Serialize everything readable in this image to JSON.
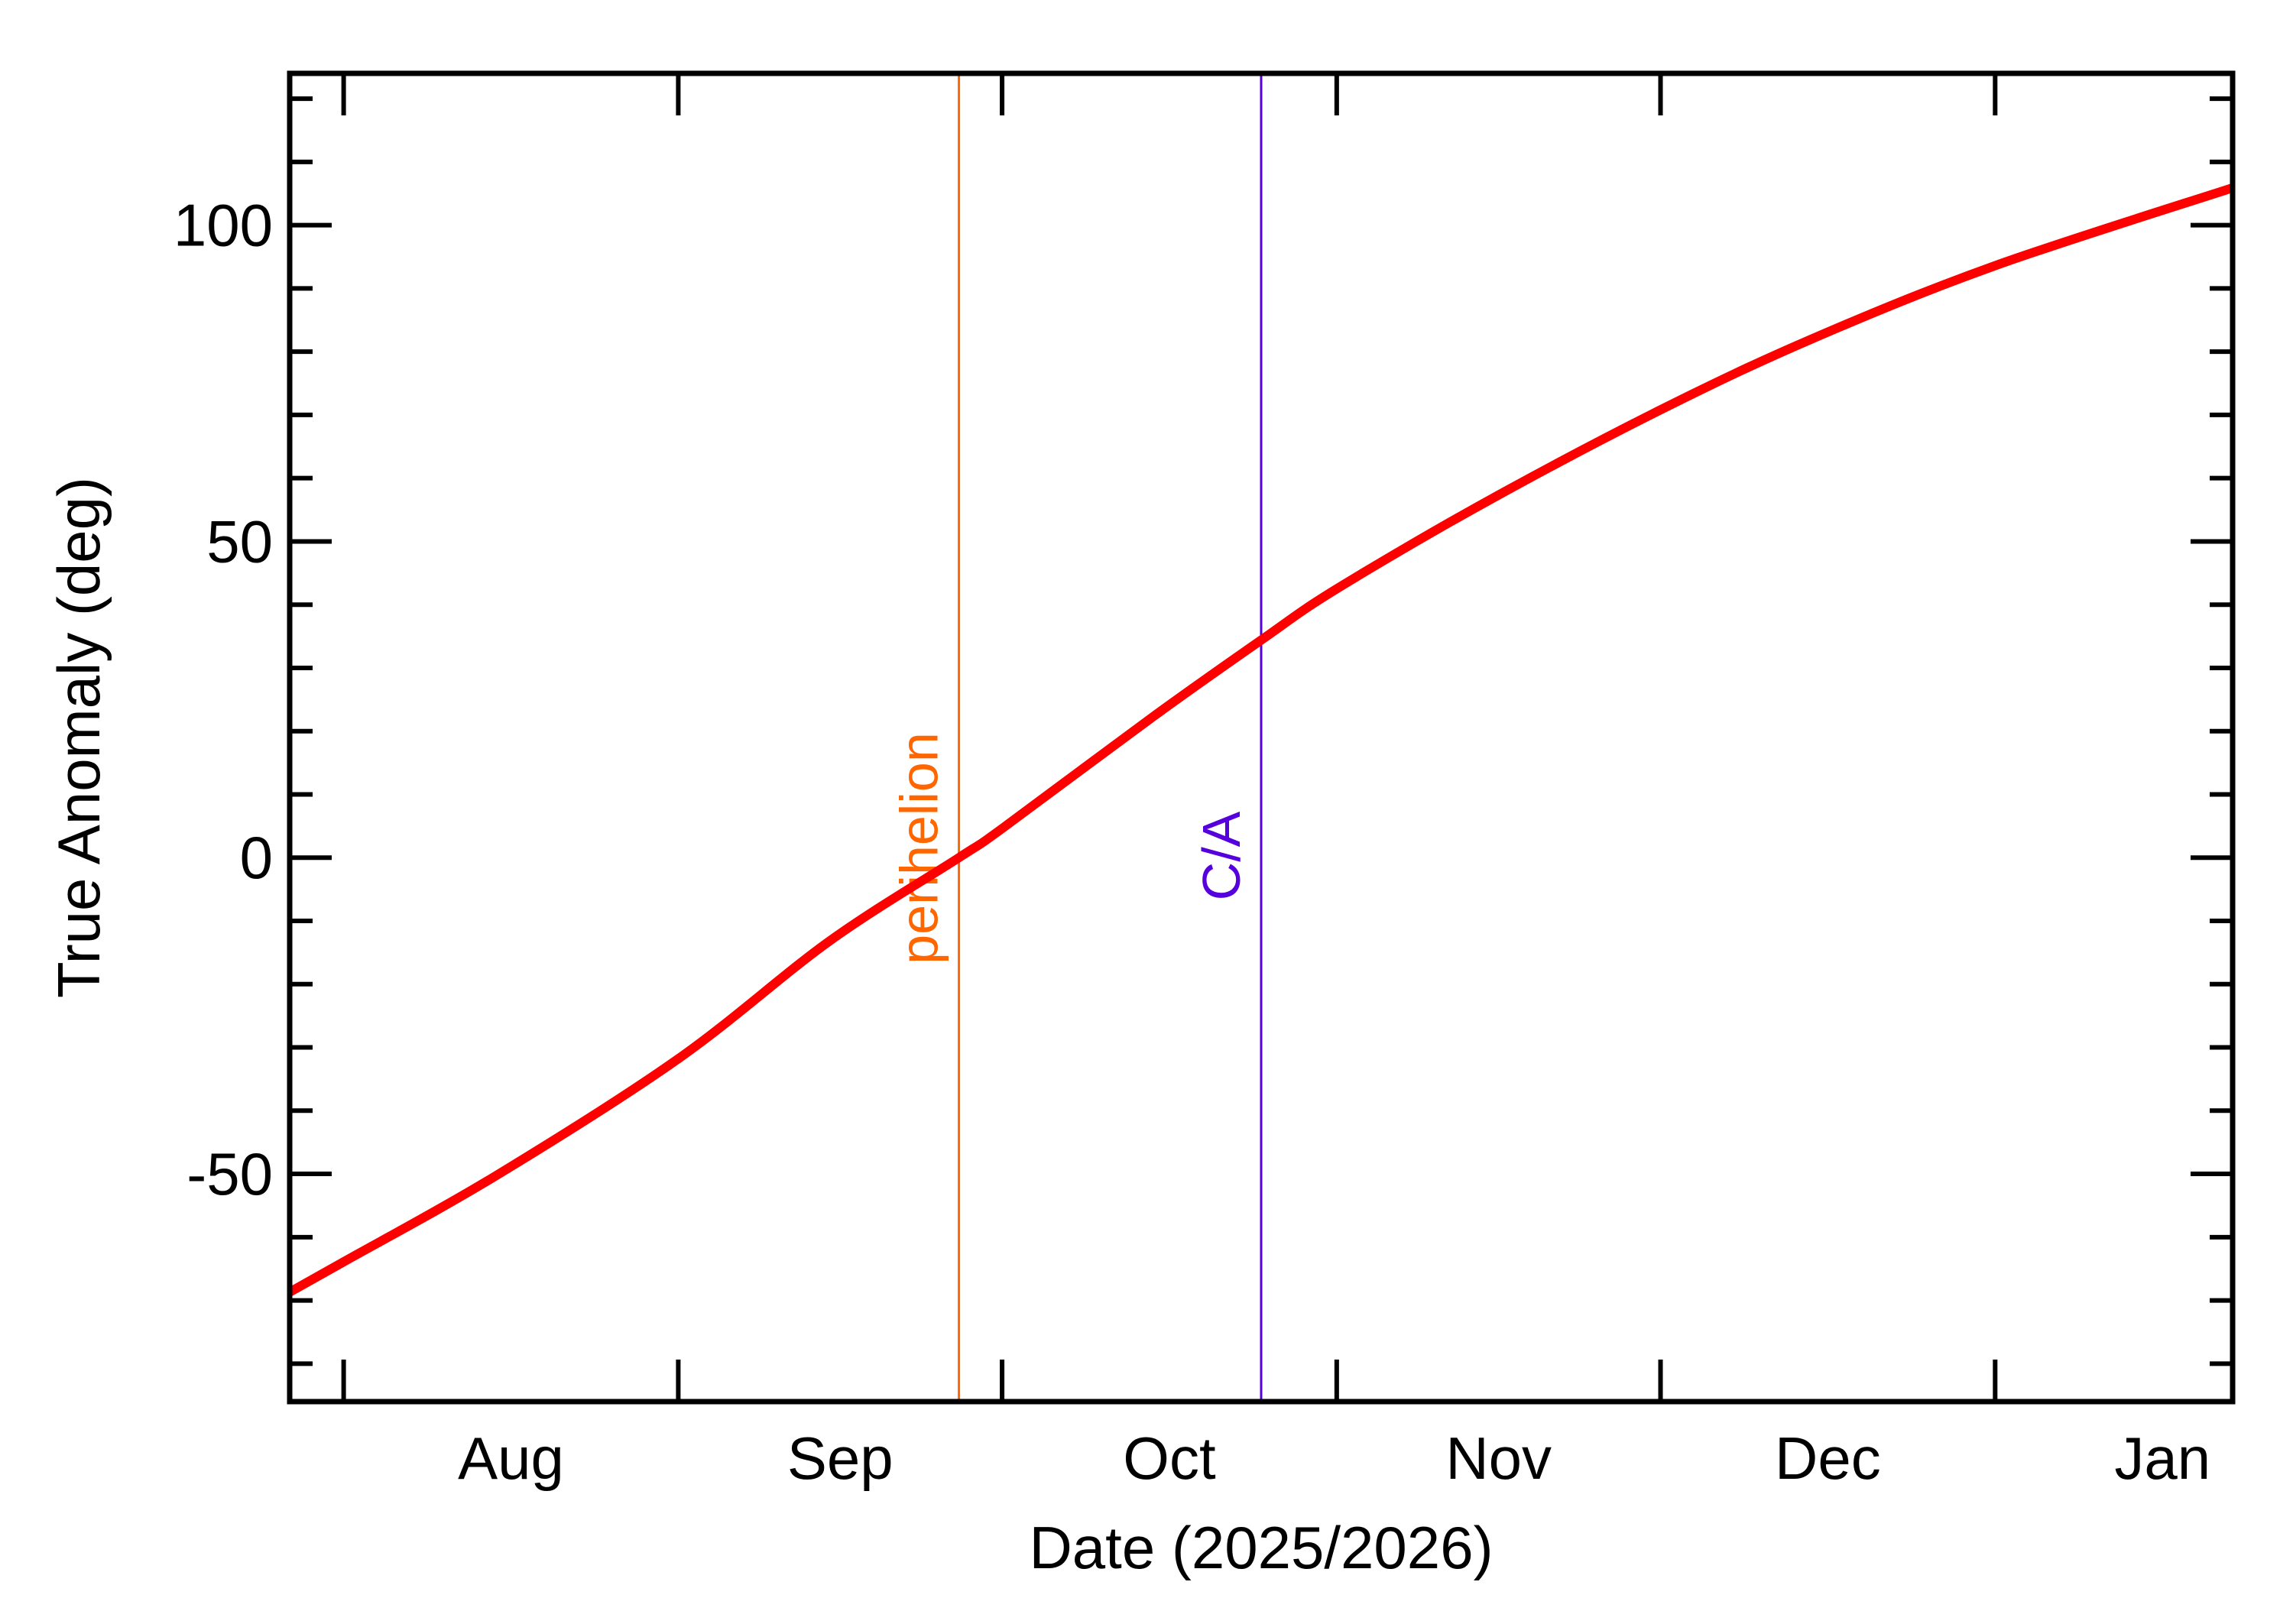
{
  "chart_data": {
    "type": "line",
    "title": "",
    "xlabel": "Date (2025/2026)",
    "ylabel": "True Anomaly (deg)",
    "ylim": [
      -86,
      124
    ],
    "xlim": [
      "2025-07-27",
      "2026-01-23"
    ],
    "grid": false,
    "legend": "none",
    "x_tick_labels": [
      "Aug",
      "Sep",
      "Oct",
      "Nov",
      "Dec",
      "Jan"
    ],
    "y_tick_labels": [
      "-50",
      "0",
      "50",
      "100"
    ],
    "y_ticks": [
      -50,
      0,
      50,
      100
    ],
    "series": [
      {
        "name": "True Anomaly",
        "color": "#ff0000",
        "x": [
          "2025-07-27",
          "2025-08-01",
          "2025-08-15",
          "2025-09-01",
          "2025-09-15",
          "2025-09-27",
          "2025-10-01",
          "2025-10-15",
          "2025-10-25",
          "2025-11-01",
          "2025-11-15",
          "2025-12-01",
          "2025-12-15",
          "2026-01-01",
          "2026-01-23"
        ],
        "values": [
          -68.7,
          -63.9,
          -50.4,
          -31.8,
          -13.2,
          0.0,
          4.6,
          22.3,
          34.4,
          42.5,
          56.4,
          70.8,
          82.0,
          93.6,
          105.9
        ]
      }
    ],
    "annotations": [
      {
        "label": "perihelion",
        "type": "vertical-line",
        "date": "2025-09-27",
        "color": "#ff6600"
      },
      {
        "label": "C/A",
        "type": "vertical-line",
        "date": "2025-10-25",
        "color": "#5500dd"
      }
    ]
  }
}
